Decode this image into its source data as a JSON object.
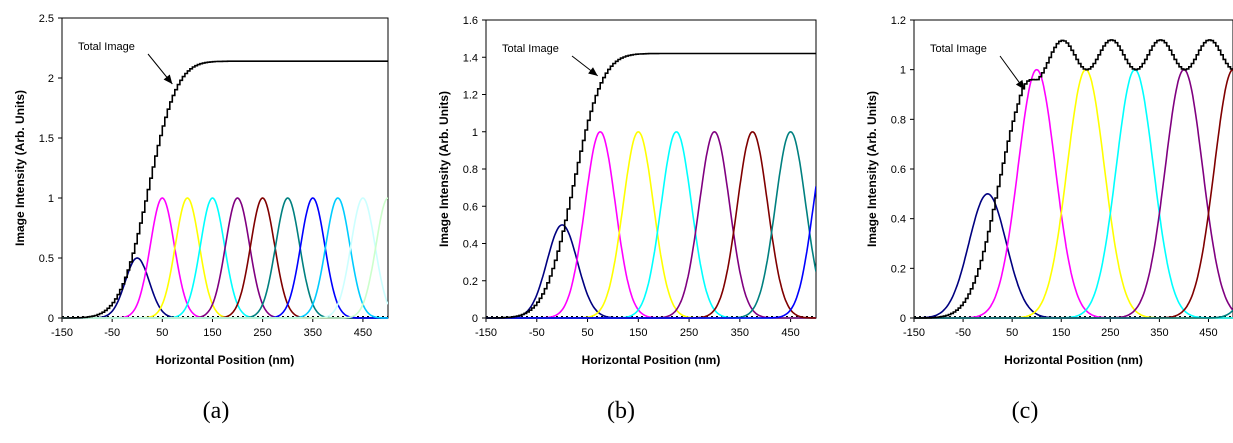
{
  "chart_data": [
    {
      "type": "line",
      "caption": "(a)",
      "xlabel": "Horizontal Position (nm)",
      "ylabel": "Image Intensity (Arb. Units)",
      "xlim": [
        -150,
        500
      ],
      "ylim": [
        0,
        2.5
      ],
      "xticks": [
        -150,
        -50,
        50,
        150,
        250,
        350,
        450
      ],
      "yticks": [
        0,
        0.5,
        1,
        1.5,
        2,
        2.5
      ],
      "ytick_labels": [
        "0",
        "0.5",
        "1",
        "1.5",
        "2",
        "2.5"
      ],
      "annotation": {
        "text": "Total Image",
        "x": 70,
        "y": 1.95
      },
      "total_image": {
        "start": -150,
        "end": 500,
        "step": 5,
        "edge_center": 20,
        "edge_sigma": 45,
        "plateau": 2.14
      },
      "peaks": {
        "spacing": 50,
        "first_center": 0,
        "first_amplitude": 0.5,
        "amplitude": 1,
        "sigma": 24,
        "colors": [
          "#000080",
          "#ff00ff",
          "#ffff00",
          "#00ffff",
          "#800080",
          "#800000",
          "#008080",
          "#0000ff",
          "#00ccff",
          "#ccffff",
          "#ccffcc"
        ]
      },
      "colors": {
        "total": "#000000"
      }
    },
    {
      "type": "line",
      "caption": "(b)",
      "xlabel": "Horizontal Position (nm)",
      "ylabel": "Image Intensity (Arb. Units)",
      "xlim": [
        -150,
        500
      ],
      "ylim": [
        0,
        1.6
      ],
      "xticks": [
        -150,
        -50,
        50,
        150,
        250,
        350,
        450
      ],
      "yticks": [
        0,
        0.2,
        0.4,
        0.6,
        0.8,
        1,
        1.2,
        1.4,
        1.6
      ],
      "ytick_labels": [
        "0",
        "0.2",
        "0.4",
        "0.6",
        "0.8",
        "1",
        "1.2",
        "1.4",
        "1.6"
      ],
      "annotation": {
        "text": "Total Image",
        "x": 70,
        "y": 1.3
      },
      "total_image": {
        "start": -150,
        "end": 500,
        "step": 5,
        "edge_center": 20,
        "edge_sigma": 45,
        "plateau": 1.42
      },
      "peaks": {
        "spacing": 75,
        "first_center": 0,
        "first_amplitude": 0.5,
        "amplitude": 1,
        "sigma": 30,
        "colors": [
          "#000080",
          "#ff00ff",
          "#ffff00",
          "#00ffff",
          "#800080",
          "#800000",
          "#008080",
          "#0000ff"
        ]
      },
      "colors": {
        "total": "#000000"
      }
    },
    {
      "type": "line",
      "caption": "(c)",
      "xlabel": "Horizontal Position (nm)",
      "ylabel": "Image Intensity (Arb. Units)",
      "xlim": [
        -150,
        500
      ],
      "ylim": [
        0,
        1.2
      ],
      "xticks": [
        -150,
        -50,
        50,
        150,
        250,
        350,
        450
      ],
      "yticks": [
        0,
        0.2,
        0.4,
        0.6,
        0.8,
        1,
        1.2
      ],
      "ytick_labels": [
        "0",
        "0.2",
        "0.4",
        "0.6",
        "0.8",
        "1",
        "1.2"
      ],
      "annotation": {
        "text": "Total Image",
        "x": 75,
        "y": 0.92
      },
      "total_image": {
        "start": -150,
        "end": 500,
        "step": 5,
        "edge_center": 20,
        "edge_sigma": 45,
        "plateau": 1.06,
        "ripple": 0.06,
        "ripple_period": 100
      },
      "peaks": {
        "spacing": 100,
        "first_center": 0,
        "first_amplitude": 0.5,
        "amplitude": 1,
        "sigma": 38,
        "colors": [
          "#000080",
          "#ff00ff",
          "#ffff00",
          "#00ffff",
          "#800080",
          "#800000",
          "#008080"
        ]
      },
      "colors": {
        "total": "#000000"
      }
    }
  ]
}
